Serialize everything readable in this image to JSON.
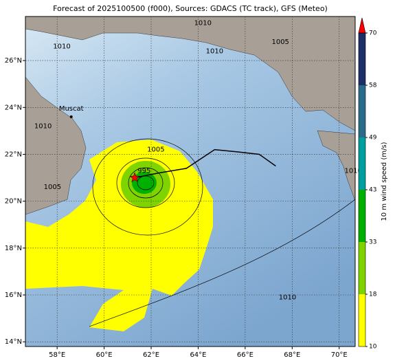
{
  "chart_data": {
    "type": "map",
    "title": "Forecast of 2025100500 (f000), Sources: GDACS (TC track), GFS (Meteo)",
    "xlim": [
      56.65,
      70.68
    ],
    "ylim": [
      13.8,
      27.88
    ],
    "xticks": [
      {
        "value": 58,
        "label": "58°E"
      },
      {
        "value": 60,
        "label": "60°E"
      },
      {
        "value": 62,
        "label": "62°E"
      },
      {
        "value": 64,
        "label": "64°E"
      },
      {
        "value": 66,
        "label": "66°E"
      },
      {
        "value": 68,
        "label": "68°E"
      },
      {
        "value": 70,
        "label": "70°E"
      }
    ],
    "yticks": [
      {
        "value": 14,
        "label": "14°N"
      },
      {
        "value": 16,
        "label": "16°N"
      },
      {
        "value": 18,
        "label": "18°N"
      },
      {
        "value": 20,
        "label": "20°N"
      },
      {
        "value": 22,
        "label": "22°N"
      },
      {
        "value": 24,
        "label": "24°N"
      },
      {
        "value": 26,
        "label": "26°N"
      }
    ],
    "grid": true,
    "track": {
      "color": "#000000",
      "lon": [
        61.3,
        62.3,
        63.5,
        64.7,
        65.7,
        66.6,
        67.3
      ],
      "lat": [
        21.0,
        21.2,
        21.4,
        22.2,
        22.1,
        22.0,
        21.5
      ]
    },
    "storm": {
      "lon": 61.3,
      "lat": 21.0,
      "color": "#ff0000"
    },
    "places": [
      {
        "name": "Muscat",
        "lon": 58.6,
        "lat": 23.6
      }
    ],
    "isobar_labels": [
      {
        "label": "1010",
        "lon": 64.2,
        "lat": 27.6
      },
      {
        "label": "1010",
        "lon": 58.2,
        "lat": 26.6
      },
      {
        "label": "1010",
        "lon": 64.7,
        "lat": 26.4
      },
      {
        "label": "1005",
        "lon": 67.5,
        "lat": 26.8
      },
      {
        "label": "1010",
        "lon": 57.4,
        "lat": 23.2
      },
      {
        "label": "1005",
        "lon": 62.2,
        "lat": 22.2
      },
      {
        "label": "995",
        "lon": 61.7,
        "lat": 21.3
      },
      {
        "label": "1005",
        "lon": 57.8,
        "lat": 20.6
      },
      {
        "label": "1010",
        "lon": 70.6,
        "lat": 21.3
      },
      {
        "label": "1010",
        "lon": 67.8,
        "lat": 15.9
      }
    ],
    "colorbar": {
      "label": "10 m wind speed (m/s)",
      "levels": [
        10,
        18,
        33,
        43,
        49,
        58,
        70
      ],
      "colors": [
        "#ffff00",
        "#7fd400",
        "#00b000",
        "#009e9e",
        "#2a6b8a",
        "#1c2f66"
      ],
      "extend_color": "#ff0000"
    }
  }
}
